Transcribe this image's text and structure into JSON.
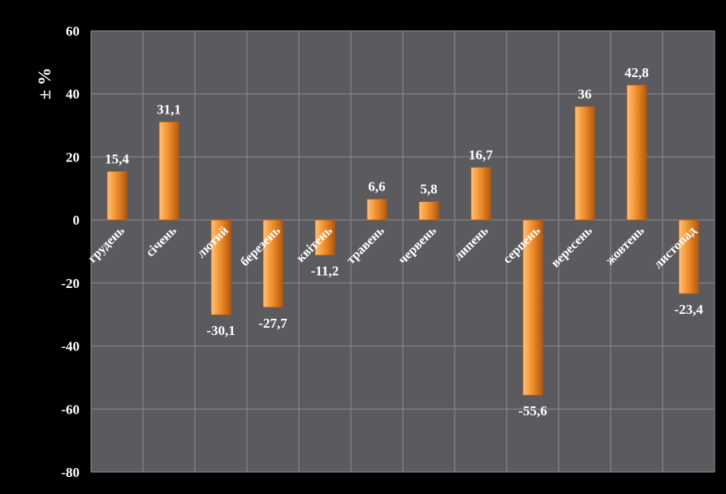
{
  "chart_data": {
    "type": "bar",
    "title": "",
    "xlabel": "",
    "ylabel": "± %",
    "ylim": [
      -80,
      60
    ],
    "yticks": [
      60,
      40,
      20,
      0,
      -20,
      -40,
      -60,
      -80
    ],
    "grid": true,
    "legend": "none",
    "categories": [
      "грудень",
      "січень",
      "лютий",
      "березень",
      "квітень",
      "травень",
      "червень",
      "липень",
      "серпень",
      "вересень",
      "жовтень",
      "листопад"
    ],
    "values": [
      15.4,
      31.1,
      -30.1,
      -27.7,
      -11.2,
      6.6,
      5.8,
      16.7,
      -55.6,
      36,
      42.8,
      -23.4
    ],
    "value_labels": [
      "15,4",
      "31,1",
      "-30,1",
      "-27,7",
      "-11,2",
      "6,6",
      "5,8",
      "16,7",
      "-55,6",
      "36",
      "42,8",
      "-23,4"
    ],
    "colors": {
      "background": "#000000",
      "plot_area": "#5b5b5f",
      "grid": "#8c8c90",
      "bar_light": "#ffc27a",
      "bar_mid": "#f2912e",
      "bar_dark": "#b45a0e",
      "text": "#ffffff"
    }
  }
}
